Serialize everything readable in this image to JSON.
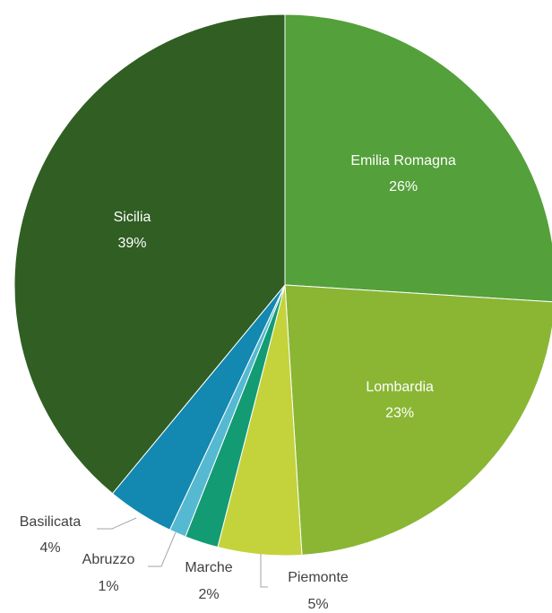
{
  "chart_data": {
    "type": "pie",
    "categories": [
      "Emilia Romagna",
      "Lombardia",
      "Piemonte",
      "Marche",
      "Abruzzo",
      "Basilicata",
      "Sicilia"
    ],
    "values": [
      26,
      23,
      5,
      2,
      1,
      4,
      39
    ],
    "value_labels": [
      "26%",
      "23%",
      "5%",
      "2%",
      "1%",
      "4%",
      "39%"
    ],
    "colors": [
      "#54a03a",
      "#8ab634",
      "#c4d33c",
      "#139b74",
      "#56b9d2",
      "#1388b1",
      "#305e23"
    ]
  }
}
